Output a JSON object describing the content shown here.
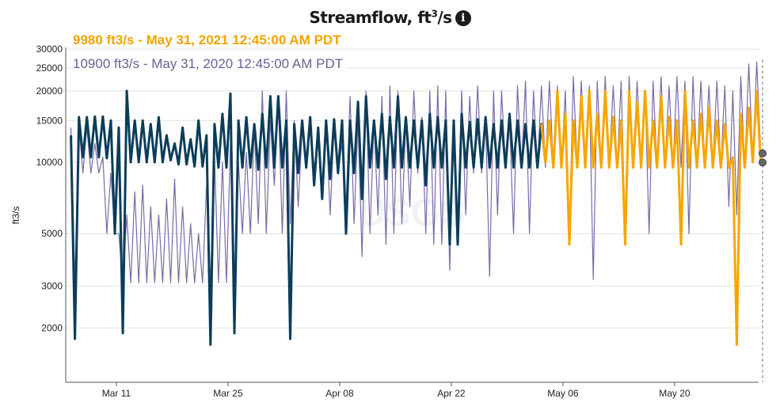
{
  "title": "Streamflow, ft",
  "title_sup": "3",
  "title_suffix": "/s",
  "info_icon": "info-circle-icon",
  "tooltips": {
    "current": "9980 ft3/s - May 31, 2021 12:45:00 AM PDT",
    "previous": "10900 ft3/s - May 31, 2020 12:45:00 AM PDT"
  },
  "colors": {
    "current_approved": "#0b3d5a",
    "current_provisional": "#f7a600",
    "previous_year": "#7a6aa8",
    "grid": "#e4e4e4"
  },
  "chart_data": {
    "type": "line",
    "title": "Streamflow, ft3/s",
    "ylabel": "ft3/s",
    "yscale": "log",
    "ylim": [
      1180,
      30500
    ],
    "yticks": [
      2000,
      3000,
      5000,
      10000,
      15000,
      20000,
      25000,
      30000
    ],
    "xticks": [
      "Mar 11",
      "Mar 25",
      "Apr 08",
      "Apr 22",
      "May 06",
      "May 20"
    ],
    "xtick_dates": [
      "2021-03-11",
      "2021-03-25",
      "2021-04-08",
      "2021-04-22",
      "2021-05-06",
      "2021-05-20"
    ],
    "grid": true,
    "end_time": "2021-05-31 00:45",
    "end_values": {
      "current": 9980,
      "previous": 10900
    },
    "dates": [
      "2021-03-05",
      "2021-03-06",
      "2021-03-07",
      "2021-03-08",
      "2021-03-09",
      "2021-03-10",
      "2021-03-11",
      "2021-03-12",
      "2021-03-13",
      "2021-03-14",
      "2021-03-15",
      "2021-03-16",
      "2021-03-17",
      "2021-03-18",
      "2021-03-19",
      "2021-03-20",
      "2021-03-21",
      "2021-03-22",
      "2021-03-23",
      "2021-03-24",
      "2021-03-25",
      "2021-03-26",
      "2021-03-27",
      "2021-03-28",
      "2021-03-29",
      "2021-03-30",
      "2021-03-31",
      "2021-04-01",
      "2021-04-02",
      "2021-04-03",
      "2021-04-04",
      "2021-04-05",
      "2021-04-06",
      "2021-04-07",
      "2021-04-08",
      "2021-04-09",
      "2021-04-10",
      "2021-04-11",
      "2021-04-12",
      "2021-04-13",
      "2021-04-14",
      "2021-04-15",
      "2021-04-16",
      "2021-04-17",
      "2021-04-18",
      "2021-04-19",
      "2021-04-20",
      "2021-04-21",
      "2021-04-22",
      "2021-04-23",
      "2021-04-24",
      "2021-04-25",
      "2021-04-26",
      "2021-04-27",
      "2021-04-28",
      "2021-04-29",
      "2021-04-30",
      "2021-05-01",
      "2021-05-02",
      "2021-05-03",
      "2021-05-04",
      "2021-05-05",
      "2021-05-06",
      "2021-05-07",
      "2021-05-08",
      "2021-05-09",
      "2021-05-10",
      "2021-05-11",
      "2021-05-12",
      "2021-05-13",
      "2021-05-14",
      "2021-05-15",
      "2021-05-16",
      "2021-05-17",
      "2021-05-18",
      "2021-05-19",
      "2021-05-20",
      "2021-05-21",
      "2021-05-22",
      "2021-05-23",
      "2021-05-24",
      "2021-05-25",
      "2021-05-26",
      "2021-05-27",
      "2021-05-28",
      "2021-05-29",
      "2021-05-30"
    ],
    "series": [
      {
        "key": "current_approved",
        "daily_high": [
          13000,
          15500,
          15500,
          15600,
          15600,
          15000,
          14000,
          20000,
          15000,
          15000,
          14500,
          15500,
          13000,
          12000,
          14000,
          12500,
          15000,
          13000,
          14500,
          16000,
          19500,
          15000,
          15500,
          14500,
          16000,
          19000,
          19000,
          15000,
          14500,
          15000,
          15500,
          14000,
          15000,
          15200,
          15000,
          15000,
          18000,
          19000,
          15000,
          16000,
          15500,
          19000,
          15500,
          15000,
          15000,
          16000,
          15500,
          15000,
          15000,
          16000,
          14800,
          15200,
          15500,
          14500,
          15000,
          16000,
          15000,
          14500,
          15000,
          14500
        ],
        "daily_low": [
          1800,
          10500,
          10500,
          10500,
          10400,
          5000,
          1900,
          10000,
          10000,
          10000,
          10000,
          10000,
          10200,
          9800,
          9800,
          9600,
          9600,
          1700,
          9500,
          9500,
          1900,
          9500,
          9500,
          9300,
          9500,
          9500,
          9500,
          1800,
          9000,
          9500,
          8000,
          7000,
          8500,
          9000,
          5000,
          9000,
          7000,
          9500,
          9500,
          8500,
          9500,
          9500,
          9500,
          9500,
          8000,
          9500,
          9500,
          4500,
          4500,
          9500,
          9500,
          9500,
          9500,
          9500,
          9500,
          9500,
          9500,
          9500,
          9500,
          10000
        ]
      },
      {
        "key": "current_provisional",
        "start_index": 59,
        "daily_high": [
          14500,
          15000,
          20000,
          16000,
          15000,
          19000,
          20000,
          16000,
          20000,
          15500,
          15000,
          20000,
          18000,
          20000,
          15000,
          19000,
          15500,
          15000,
          20000,
          15000,
          16000,
          17000,
          15000,
          14500,
          10500,
          16000,
          17000,
          20000
        ],
        "daily_low": [
          10000,
          9500,
          9500,
          4500,
          9500,
          9500,
          9500,
          9500,
          9500,
          9500,
          4500,
          9500,
          9500,
          9500,
          9500,
          9500,
          9500,
          4500,
          9500,
          9500,
          9500,
          9500,
          9500,
          9500,
          1700,
          9500,
          10000,
          9980
        ]
      },
      {
        "key": "previous_year",
        "daily_high": [
          14000,
          14500,
          14000,
          12000,
          10500,
          9000,
          5000,
          6000,
          7500,
          8000,
          6500,
          6000,
          7000,
          8500,
          6500,
          5500,
          5000,
          8000,
          10500,
          10000,
          12000,
          10000,
          11000,
          14000,
          20000,
          15000,
          19000,
          20000,
          15000,
          14000,
          15000,
          12000,
          15000,
          14000,
          12000,
          19000,
          15000,
          20000,
          15000,
          19000,
          21000,
          20000,
          15000,
          20000,
          15500,
          20000,
          21000,
          20000,
          15000,
          20000,
          19000,
          21000,
          15000,
          20000,
          20000,
          15000,
          21000,
          22000,
          20000,
          21000,
          22000,
          21000,
          20000,
          23000,
          22000,
          21000,
          22000,
          23000,
          21000,
          22000,
          23000,
          22000,
          20000,
          22000,
          23000,
          21000,
          23000,
          22000,
          23000,
          22000,
          21000,
          22000,
          21000,
          20000,
          23000,
          26000,
          26500
        ],
        "daily_low": [
          3100,
          9000,
          9000,
          9000,
          5000,
          5000,
          3100,
          3100,
          3100,
          3100,
          3100,
          3100,
          3100,
          3100,
          3100,
          3100,
          3100,
          3100,
          3100,
          3100,
          3200,
          5000,
          5000,
          5500,
          5000,
          8000,
          5000,
          5500,
          6500,
          9500,
          9500,
          7000,
          6000,
          9000,
          6500,
          5500,
          4000,
          5000,
          6000,
          4500,
          5000,
          5500,
          6500,
          9000,
          5000,
          4500,
          4500,
          3500,
          5000,
          6000,
          9000,
          9000,
          3300,
          6000,
          9500,
          5000,
          9500,
          5000,
          9500,
          9500,
          9500,
          9500,
          5000,
          9500,
          9500,
          3200,
          9500,
          9500,
          9500,
          5000,
          9500,
          9500,
          5000,
          9500,
          9500,
          9500,
          9500,
          5000,
          9500,
          9500,
          9500,
          9500,
          6500,
          6000,
          9500,
          10000,
          10900
        ]
      }
    ]
  }
}
